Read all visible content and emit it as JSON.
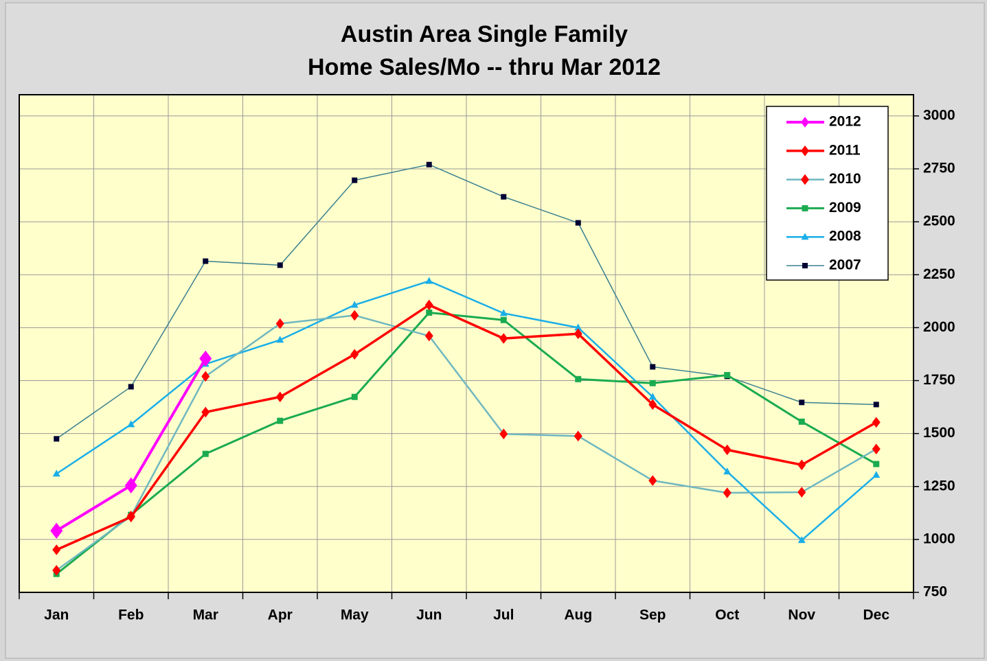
{
  "chart_data": {
    "type": "line",
    "title": "Austin Area Single Family",
    "subtitle": "Home Sales/Mo -- thru Mar 2012",
    "categories": [
      "Jan",
      "Feb",
      "Mar",
      "Apr",
      "May",
      "Jun",
      "Jul",
      "Aug",
      "Sep",
      "Oct",
      "Nov",
      "Dec"
    ],
    "ylim": [
      750,
      3100
    ],
    "yticks": [
      750,
      1000,
      1250,
      1500,
      1750,
      2000,
      2250,
      2500,
      2750,
      3000
    ],
    "y_axis_side": "right",
    "grid": true,
    "legend": "upper right",
    "series": [
      {
        "name": "2012",
        "color": "#ff00ff",
        "marker": "diamond",
        "marker_color": "#ff00ff",
        "marker_size": 9,
        "line_width": 4,
        "values": [
          1041,
          1255,
          1854,
          null,
          null,
          null,
          null,
          null,
          null,
          null,
          null,
          null
        ]
      },
      {
        "name": "2011",
        "color": "#ff0000",
        "marker": "diamond",
        "marker_color": "#ff0000",
        "marker_size": 6,
        "line_width": 3.5,
        "values": [
          951,
          1106,
          1601,
          1673,
          1874,
          2107,
          1949,
          1971,
          1637,
          1423,
          1352,
          1553
        ]
      },
      {
        "name": "2010",
        "color": "#6fb7c0",
        "marker": "diamond",
        "marker_color": "#ff0000",
        "marker_size": 6,
        "line_width": 2.5,
        "values": [
          854,
          1110,
          1770,
          2019,
          2058,
          1961,
          1498,
          1488,
          1278,
          1220,
          1223,
          1427
        ]
      },
      {
        "name": "2009",
        "color": "#1aab50",
        "marker": "square",
        "marker_color": "#1aab50",
        "marker_size": 4.5,
        "line_width": 3,
        "values": [
          837,
          1116,
          1404,
          1560,
          1673,
          2071,
          2036,
          1757,
          1738,
          1776,
          1556,
          1356
        ]
      },
      {
        "name": "2008",
        "color": "#1aaee8",
        "marker": "triangle",
        "marker_color": "#1aaee8",
        "marker_size": 5,
        "line_width": 2.5,
        "values": [
          1310,
          1543,
          1828,
          1942,
          2107,
          2220,
          2068,
          2000,
          1673,
          1320,
          996,
          1304
        ]
      },
      {
        "name": "2007",
        "color": "#3a7f8f",
        "marker": "square",
        "marker_color": "#000033",
        "marker_size": 4,
        "line_width": 1.5,
        "values": [
          1475,
          1721,
          2314,
          2295,
          2696,
          2770,
          2618,
          2495,
          1815,
          1770,
          1647,
          1637
        ]
      }
    ]
  }
}
